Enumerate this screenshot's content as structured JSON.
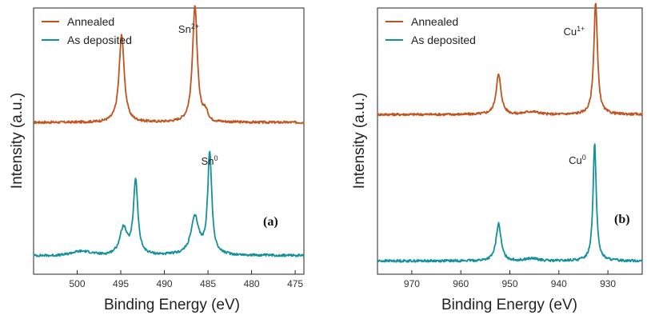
{
  "colors": {
    "annealed": "#C0531E",
    "as_deposited": "#13909B"
  },
  "chart_data": [
    {
      "type": "line",
      "panel_label": "(a)",
      "xlabel": "Binding Energy (eV)",
      "ylabel": "Intensity (a.u.)",
      "xlim": [
        505,
        474
      ],
      "x_reversed": true,
      "xticks": [
        500,
        495,
        490,
        485,
        480,
        475
      ],
      "legend": {
        "placement": "top-left",
        "entries": [
          "Annealed",
          "As deposited"
        ]
      },
      "annotations": [
        {
          "base": "Sn",
          "sup": "2+",
          "x": 486.5,
          "series": "Annealed"
        },
        {
          "base": "Sn",
          "sup": "0",
          "x": 484.8,
          "series": "As deposited"
        }
      ],
      "series": [
        {
          "name": "Annealed",
          "color_key": "annealed",
          "baseline": 0.57,
          "peaks": [
            [
              494.9,
              0.33,
              0.35
            ],
            [
              486.5,
              0.44,
              0.33
            ]
          ],
          "shoulder": [
            485.3,
            0.03,
            0.4
          ]
        },
        {
          "name": "As deposited",
          "color_key": "as_deposited",
          "baseline": 0.07,
          "peaks": [
            [
              494.7,
              0.1,
              0.5
            ],
            [
              493.3,
              0.28,
              0.3
            ],
            [
              486.5,
              0.14,
              0.55
            ],
            [
              484.8,
              0.38,
              0.28
            ]
          ],
          "hump": [
            499.5,
            0.015,
            1.6
          ]
        }
      ]
    },
    {
      "type": "line",
      "panel_label": "(b)",
      "xlabel": "Binding Energy (eV)",
      "ylabel": "Intensity (a.u.)",
      "xlim": [
        977,
        923
      ],
      "x_reversed": true,
      "xticks": [
        970,
        960,
        950,
        940,
        930
      ],
      "legend": {
        "placement": "top-left",
        "entries": [
          "Annealed",
          "As deposited"
        ]
      },
      "annotations": [
        {
          "base": "Cu",
          "sup": "1+",
          "x": 932.5,
          "series": "Annealed"
        },
        {
          "base": "Cu",
          "sup": "0",
          "x": 932.7,
          "series": "As deposited"
        }
      ],
      "series": [
        {
          "name": "Annealed",
          "color_key": "annealed",
          "baseline": 0.6,
          "peaks": [
            [
              952.3,
              0.15,
              0.6
            ],
            [
              932.5,
              0.42,
              0.45
            ]
          ],
          "shoulder": [
            945.5,
            0.01,
            2.0
          ]
        },
        {
          "name": "As deposited",
          "color_key": "as_deposited",
          "baseline": 0.05,
          "peaks": [
            [
              952.3,
              0.14,
              0.6
            ],
            [
              932.7,
              0.44,
              0.4
            ]
          ],
          "shoulder": [
            945.5,
            0.008,
            2.0
          ]
        }
      ]
    }
  ]
}
